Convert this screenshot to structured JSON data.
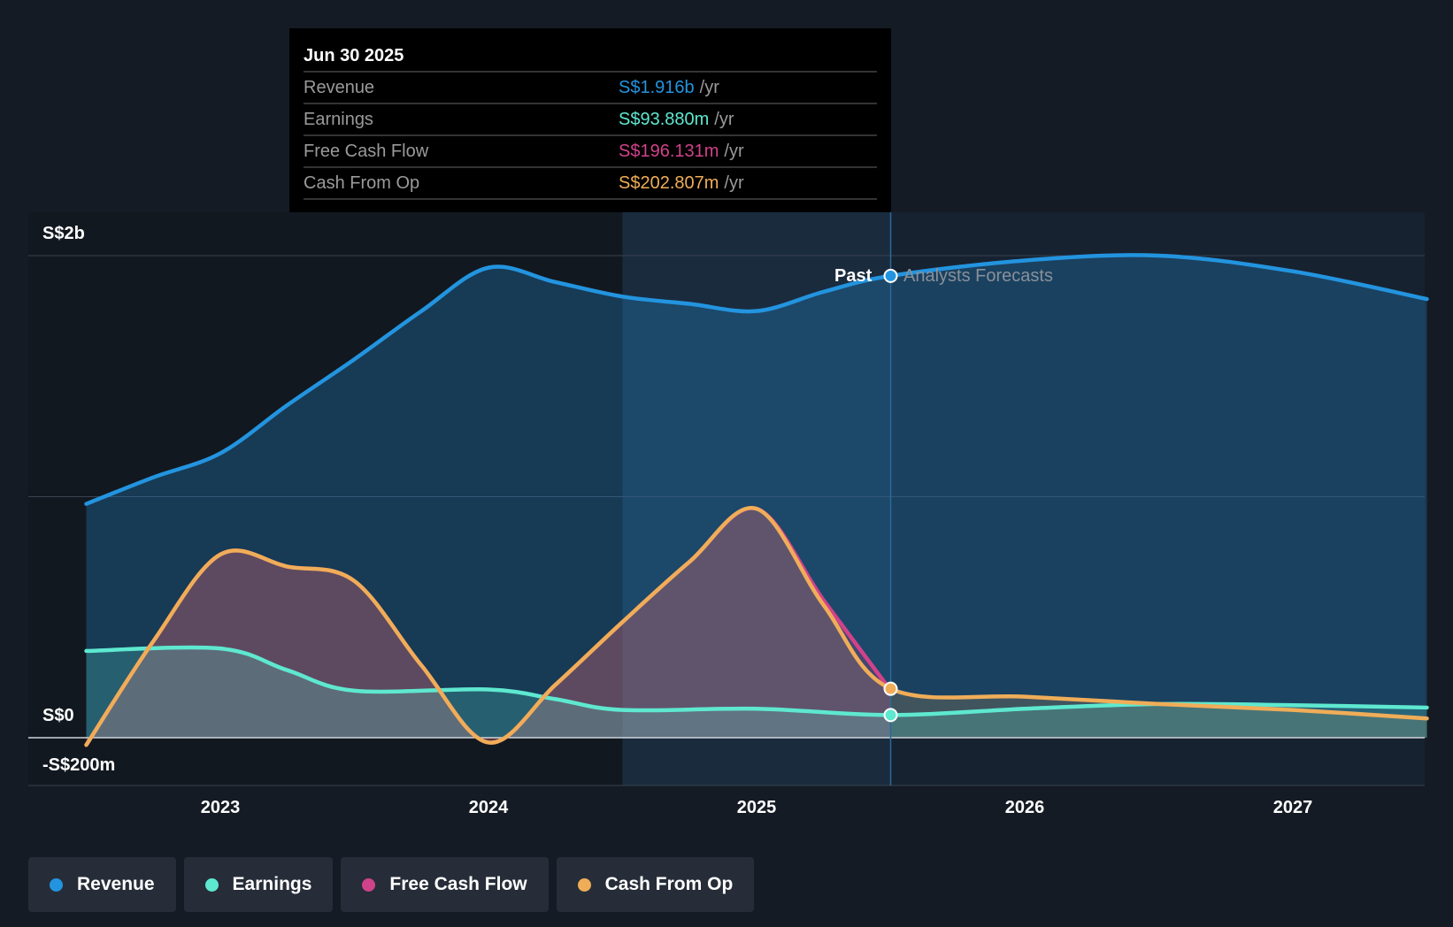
{
  "tooltip": {
    "date": "Jun 30 2025",
    "rows": [
      {
        "label": "Revenue",
        "value": "S$1.916b",
        "unit": "/yr",
        "color": "#2394df"
      },
      {
        "label": "Earnings",
        "value": "S$93.880m",
        "unit": "/yr",
        "color": "#5ee8d0"
      },
      {
        "label": "Free Cash Flow",
        "value": "S$196.131m",
        "unit": "/yr",
        "color": "#d0428a"
      },
      {
        "label": "Cash From Op",
        "value": "S$202.807m",
        "unit": "/yr",
        "color": "#f0ad58"
      }
    ]
  },
  "chart_data": {
    "type": "area",
    "y_ticks": [
      "S$2b",
      "S$0",
      "-S$200m"
    ],
    "x_ticks": [
      "2023",
      "2024",
      "2025",
      "2026",
      "2027"
    ],
    "ylim": [
      -0.2,
      2.0
    ],
    "y_unit": "S$ billions",
    "past_label": "Past",
    "forecast_label": "Analysts Forecasts",
    "divider_x": 2025.5,
    "highlight_from": 2024.5,
    "series": [
      {
        "name": "Revenue",
        "color": "#2394df",
        "x": [
          2022.5,
          2022.75,
          2023.0,
          2023.25,
          2023.5,
          2023.75,
          2024.0,
          2024.25,
          2024.5,
          2024.75,
          2025.0,
          2025.25,
          2025.5,
          2026.0,
          2026.5,
          2027.0,
          2027.5
        ],
        "y": [
          0.97,
          1.08,
          1.18,
          1.38,
          1.57,
          1.77,
          1.95,
          1.89,
          1.83,
          1.8,
          1.77,
          1.85,
          1.916,
          1.98,
          2.0,
          1.935,
          1.82
        ]
      },
      {
        "name": "Earnings",
        "color": "#5ee8d0",
        "x": [
          2022.5,
          2023.0,
          2023.25,
          2023.5,
          2024.0,
          2024.25,
          2024.5,
          2025.0,
          2025.5,
          2026.0,
          2026.5,
          2027.0,
          2027.5
        ],
        "y": [
          0.36,
          0.37,
          0.28,
          0.195,
          0.2,
          0.16,
          0.115,
          0.12,
          0.094,
          0.12,
          0.14,
          0.135,
          0.125
        ]
      },
      {
        "name": "Free Cash Flow",
        "color": "#d0428a",
        "x": [
          2022.5,
          2022.75,
          2023.0,
          2023.25,
          2023.5,
          2023.75,
          2024.0,
          2024.25,
          2024.5,
          2024.75,
          2025.0,
          2025.25,
          2025.5
        ],
        "y": [
          -0.03,
          0.4,
          0.76,
          0.71,
          0.65,
          0.3,
          -0.02,
          0.22,
          0.48,
          0.73,
          0.95,
          0.57,
          0.196
        ]
      },
      {
        "name": "Cash From Op",
        "color": "#f0ad58",
        "x": [
          2022.5,
          2022.75,
          2023.0,
          2023.25,
          2023.5,
          2023.75,
          2024.0,
          2024.25,
          2024.5,
          2024.75,
          2025.0,
          2025.25,
          2025.5,
          2026.0,
          2026.5,
          2027.0,
          2027.5
        ],
        "y": [
          -0.03,
          0.4,
          0.76,
          0.71,
          0.65,
          0.3,
          -0.02,
          0.22,
          0.48,
          0.73,
          0.95,
          0.55,
          0.203,
          0.17,
          0.14,
          0.115,
          0.08
        ]
      }
    ]
  }
}
